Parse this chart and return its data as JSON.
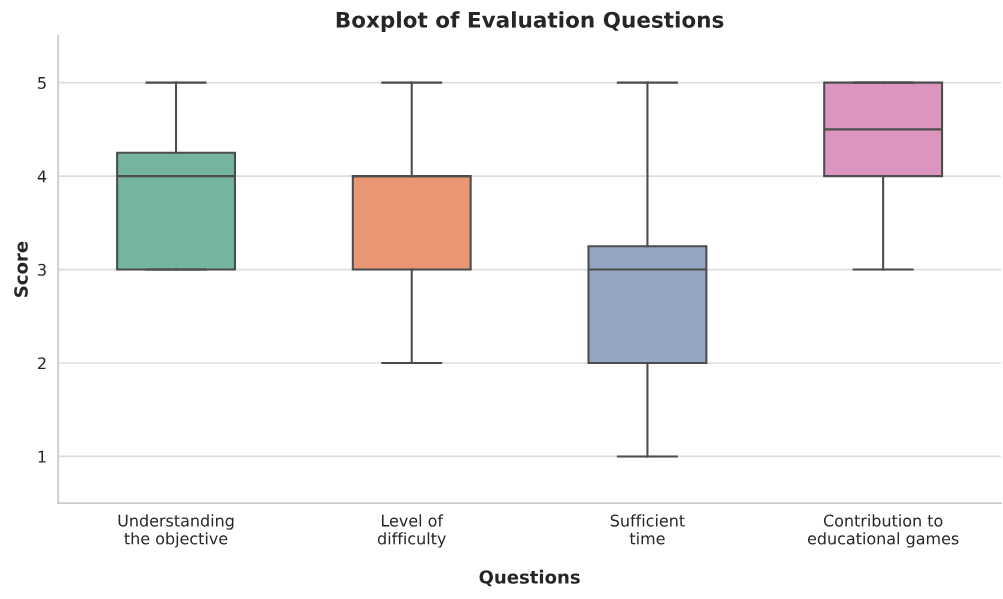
{
  "chart_data": {
    "type": "box",
    "title": "Boxplot of Evaluation Questions",
    "xlabel": "Questions",
    "ylabel": "Score",
    "categories": [
      "Understanding\nthe objective",
      "Level of\ndifficulty",
      "Sufficient\ntime",
      "Contribution to\neducational games"
    ],
    "colors": [
      "#74b4a0",
      "#e89674",
      "#95a5c4",
      "#dc95be"
    ],
    "boxes": [
      {
        "low": 3,
        "q1": 3,
        "median": 4,
        "q3": 4.25,
        "high": 5
      },
      {
        "low": 2,
        "q1": 3,
        "median": 4,
        "q3": 4,
        "high": 5
      },
      {
        "low": 1,
        "q1": 2,
        "median": 3,
        "q3": 3.25,
        "high": 5
      },
      {
        "low": 3,
        "q1": 4,
        "median": 4.5,
        "q3": 5,
        "high": 5
      }
    ],
    "ylim": [
      0.5,
      5.5
    ],
    "yticks": [
      1,
      2,
      3,
      4,
      5
    ],
    "grid": "y",
    "legend": false
  }
}
